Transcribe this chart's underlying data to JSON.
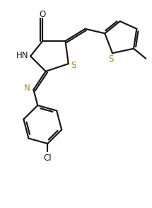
{
  "bg_color": "#ffffff",
  "line_color": "#1a1a1a",
  "sulfur_color": "#b8860b",
  "nitrogen_color": "#1a1a1a",
  "line_width": 1.6,
  "figsize": [
    2.15,
    2.94
  ],
  "dpi": 100,
  "xlim": [
    0,
    10
  ],
  "ylim": [
    0,
    13.7
  ]
}
